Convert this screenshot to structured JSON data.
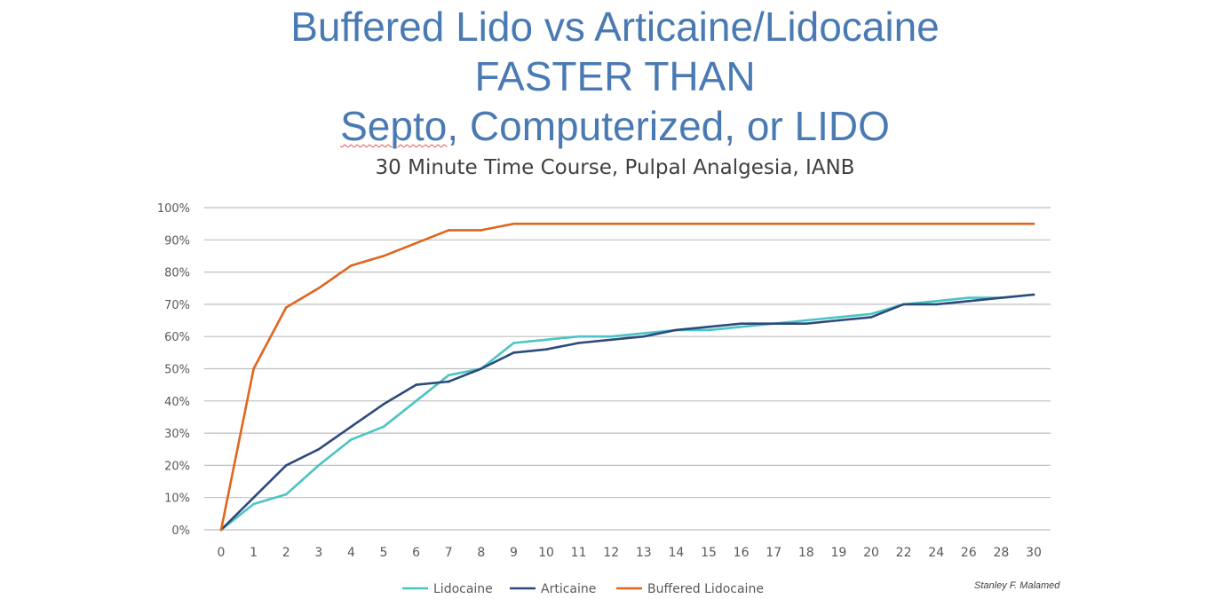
{
  "title": {
    "line1": "Buffered Lido vs Articaine/Lidocaine",
    "line2": "FASTER THAN",
    "line3_part1": "Septo",
    "line3_part2": ", Computerized, or LIDO"
  },
  "credit": "Stanley F. Malamed",
  "colors": {
    "title": "#4a7ab3",
    "lidocaine": "#4bc5c3",
    "articaine": "#2c4a7c",
    "buffered": "#e0651d",
    "grid": "#bfbfbf"
  },
  "chart_data": {
    "type": "line",
    "title": "30 Minute Time Course, Pulpal Analgesia, IANB",
    "xlabel": "",
    "ylabel": "",
    "categories": [
      "0",
      "1",
      "2",
      "3",
      "4",
      "5",
      "6",
      "7",
      "8",
      "9",
      "10",
      "11",
      "12",
      "13",
      "14",
      "15",
      "16",
      "17",
      "18",
      "19",
      "20",
      "22",
      "24",
      "26",
      "28",
      "30"
    ],
    "ylim": [
      0,
      100
    ],
    "yticks": [
      "0%",
      "10%",
      "20%",
      "30%",
      "40%",
      "50%",
      "60%",
      "70%",
      "80%",
      "90%",
      "100%"
    ],
    "grid": true,
    "legend": "bottom-center",
    "series": [
      {
        "name": "Lidocaine",
        "color": "#4bc5c3",
        "values": [
          0,
          8,
          11,
          20,
          28,
          32,
          40,
          48,
          50,
          58,
          59,
          60,
          60,
          61,
          62,
          62,
          63,
          64,
          65,
          66,
          67,
          70,
          71,
          72,
          72,
          73
        ]
      },
      {
        "name": "Articaine",
        "color": "#2c4a7c",
        "values": [
          0,
          10,
          20,
          25,
          32,
          39,
          45,
          46,
          50,
          55,
          56,
          58,
          59,
          60,
          62,
          63,
          64,
          64,
          64,
          65,
          66,
          70,
          70,
          71,
          72,
          73
        ]
      },
      {
        "name": "Buffered Lidocaine",
        "color": "#e0651d",
        "values": [
          0,
          50,
          69,
          75,
          82,
          85,
          89,
          93,
          93,
          95,
          95,
          95,
          95,
          95,
          95,
          95,
          95,
          95,
          95,
          95,
          95,
          95,
          95,
          95,
          95,
          95
        ]
      }
    ]
  }
}
